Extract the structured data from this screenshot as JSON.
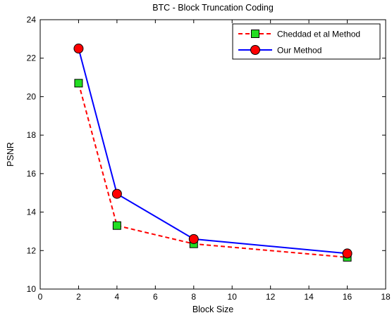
{
  "chart_data": {
    "type": "line",
    "title": "BTC - Block Truncation Coding",
    "xlabel": "Block Size",
    "ylabel": "PSNR",
    "xlim": [
      0,
      18
    ],
    "ylim": [
      10,
      24
    ],
    "xticks": [
      0,
      2,
      4,
      6,
      8,
      10,
      12,
      14,
      16,
      18
    ],
    "yticks": [
      10,
      12,
      14,
      16,
      18,
      20,
      22,
      24
    ],
    "grid": false,
    "legend_position": "top-right",
    "x": [
      2,
      4,
      8,
      16
    ],
    "series": [
      {
        "name": "Cheddad et al Method",
        "values": [
          20.7,
          13.3,
          12.35,
          11.65
        ],
        "line_color": "#ff0000",
        "line_style": "dashed",
        "marker": "square",
        "marker_color": "#22dd22"
      },
      {
        "name": "Our Method",
        "values": [
          22.5,
          14.95,
          12.6,
          11.85
        ],
        "line_color": "#0000ff",
        "line_style": "solid",
        "marker": "circle",
        "marker_color": "#ff0000"
      }
    ]
  }
}
